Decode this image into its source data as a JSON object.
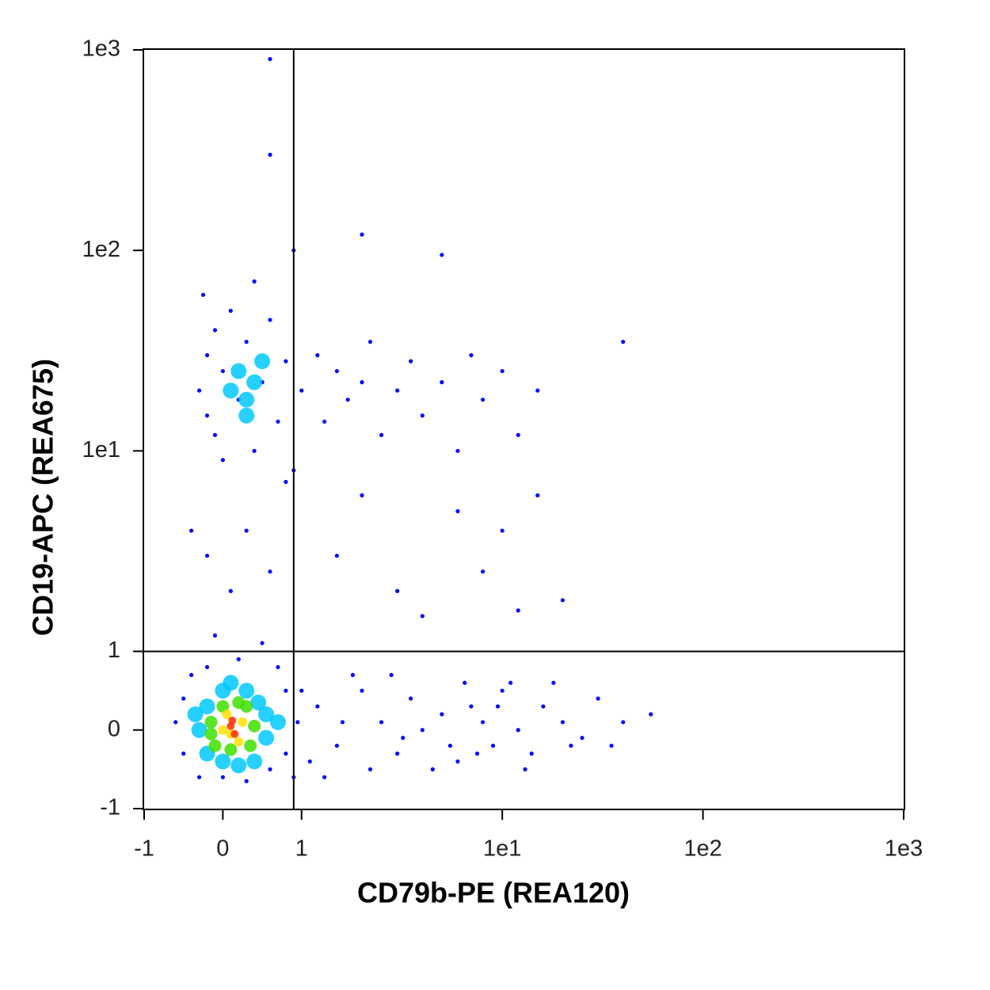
{
  "chart_data": {
    "type": "scatter",
    "x_label": "CD79b-PE (REA120)",
    "y_label": "CD19-APC (REA675)",
    "xscale": "biexponential",
    "yscale": "biexponential",
    "xlim": [
      -1,
      1000
    ],
    "ylim": [
      -1,
      1000
    ],
    "xticks": [
      -1,
      0,
      1,
      {
        "value": 10,
        "label": "1e1"
      },
      {
        "value": 100,
        "label": "1e2"
      },
      {
        "value": 1000,
        "label": "1e3"
      }
    ],
    "yticks": [
      -1,
      0,
      1,
      {
        "value": 10,
        "label": "1e1"
      },
      {
        "value": 100,
        "label": "1e2"
      },
      {
        "value": 1000,
        "label": "1e3"
      }
    ],
    "quadrant_lines": {
      "x": 0.9,
      "y": 1
    },
    "series": [
      {
        "color": "#0000ff",
        "x": [
          1.2,
          1.5,
          2,
          2.5,
          3,
          3.5,
          4,
          5,
          6,
          7,
          8,
          9,
          10,
          12,
          14,
          16,
          20,
          25,
          30,
          40,
          55,
          1.8,
          2.2,
          4.5,
          6.5,
          11,
          13,
          18,
          22,
          35,
          1.3,
          2.8,
          3.2,
          5.5,
          7.5,
          9.5,
          1.0,
          1.1,
          0.95,
          1.6,
          -0.6,
          -0.5,
          -0.5,
          -0.4,
          -0.3,
          0,
          0.3,
          0.6,
          0.8,
          0.8,
          0.7,
          0.2,
          -0.2,
          0.5,
          -0.1,
          0.9,
          -0.2,
          0.1,
          0.3,
          0.6,
          1.5,
          3,
          4,
          6,
          8,
          10,
          12,
          15,
          0.8,
          2,
          -0.4,
          20,
          -0.3,
          -0.2,
          -0.2,
          -0.1,
          -0.1,
          0,
          0,
          0.1,
          0.2,
          0.3,
          0.4,
          0.5,
          0.6,
          0.7,
          0.8,
          0.9,
          1.0,
          1.2,
          1.3,
          1.5,
          1.7,
          2,
          2.2,
          2.5,
          3,
          3.5,
          4,
          5,
          6,
          7,
          8,
          10,
          12,
          15,
          -0.25,
          0.4,
          0.9,
          2,
          5,
          40,
          0.6,
          0.6
        ],
        "values": [
          0.3,
          -0.2,
          0.5,
          0.1,
          -0.3,
          0.4,
          0,
          0.2,
          -0.4,
          0.3,
          0.1,
          -0.2,
          0.5,
          0,
          -0.3,
          0.3,
          0.1,
          -0.1,
          0.4,
          0.1,
          0.2,
          0.7,
          -0.5,
          -0.5,
          0.6,
          0.6,
          -0.5,
          0.6,
          -0.2,
          -0.2,
          -0.6,
          0.7,
          -0.1,
          -0.2,
          -0.3,
          0.3,
          0.5,
          -0.4,
          0.1,
          0.1,
          0.1,
          -0.3,
          0.4,
          0.7,
          -0.6,
          -0.6,
          -0.65,
          -0.5,
          0.5,
          -0.3,
          0.8,
          0.9,
          0.8,
          1.1,
          1.2,
          -0.6,
          3,
          2,
          4,
          2.5,
          3,
          2,
          1.5,
          5,
          2.5,
          4,
          1.6,
          6,
          7,
          6,
          4,
          1.8,
          20,
          15,
          30,
          40,
          12,
          25,
          9,
          50,
          18,
          35,
          10,
          22,
          45,
          14,
          28,
          8,
          20,
          30,
          14,
          25,
          18,
          22,
          35,
          12,
          20,
          28,
          15,
          22,
          10,
          30,
          18,
          25,
          12,
          20,
          60,
          70,
          100,
          120,
          95,
          35,
          300,
          900
        ]
      },
      {
        "color": "#00c8ff",
        "x": [
          0.1,
          0.2,
          0.3,
          0.4,
          0.5,
          0.3,
          -0.3,
          -0.2,
          -0.2,
          0,
          0,
          0.3,
          0.4,
          0.55,
          0.55,
          -0.35,
          0.2,
          0.45,
          0.7,
          0.1
        ],
        "values": [
          20,
          25,
          18,
          22,
          28,
          15,
          0,
          0.3,
          -0.3,
          0.5,
          -0.4,
          0.5,
          -0.4,
          0.2,
          -0.1,
          0.2,
          -0.45,
          0.35,
          0.1,
          0.6
        ]
      },
      {
        "color": "#40e000",
        "x": [
          -0.15,
          -0.1,
          0,
          0.1,
          0.3,
          0.35,
          0.4,
          -0.15,
          0.2
        ],
        "values": [
          0.1,
          -0.2,
          0.3,
          -0.25,
          0.3,
          -0.2,
          0.05,
          -0.05,
          0.35
        ]
      },
      {
        "color": "#ffe000",
        "x": [
          0,
          0.05,
          0.2,
          0.25,
          0.1
        ],
        "values": [
          0,
          0.2,
          -0.15,
          0.1,
          -0.05
        ]
      },
      {
        "color": "#ff3000",
        "x": [
          0.1,
          0.15,
          0.12
        ],
        "values": [
          0.05,
          -0.05,
          0.12
        ]
      }
    ]
  }
}
